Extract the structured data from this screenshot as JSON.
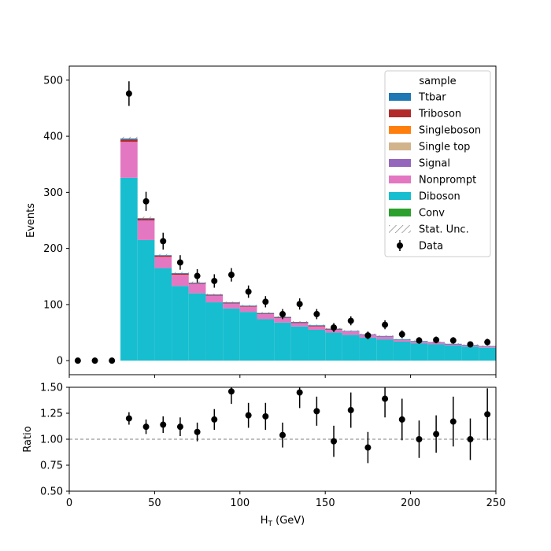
{
  "chart_data": [
    {
      "type": "bar",
      "subtype": "stacked-histogram",
      "panel": "main",
      "ylabel": "Events",
      "xlim": [
        0,
        250
      ],
      "ylim": [
        -25,
        525
      ],
      "yticks": [
        0,
        100,
        200,
        300,
        400,
        500
      ],
      "bin_edges": [
        30,
        40,
        50,
        60,
        70,
        80,
        90,
        100,
        110,
        120,
        130,
        140,
        150,
        160,
        170,
        180,
        190,
        200,
        210,
        220,
        230,
        240,
        250
      ],
      "series": [
        {
          "name": "Diboson",
          "color": "#17becf",
          "values": [
            326,
            215,
            165,
            133,
            120,
            104,
            93,
            87,
            74,
            68,
            61,
            55,
            50,
            46,
            41,
            38,
            34,
            31,
            29,
            27,
            25,
            23
          ]
        },
        {
          "name": "Nonprompt",
          "color": "#e377c2",
          "values": [
            64,
            35,
            20,
            20,
            17,
            12,
            9,
            9,
            9,
            8,
            6,
            6,
            5,
            6,
            5,
            5,
            3,
            3,
            3,
            2,
            2,
            2
          ]
        },
        {
          "name": "Conv",
          "color": "#2ca02c",
          "values": [
            0,
            0,
            0,
            0,
            0,
            0,
            0,
            0,
            0,
            0,
            0,
            0,
            0,
            0,
            0,
            0,
            0,
            0,
            0,
            0,
            0,
            0
          ]
        },
        {
          "name": "Signal",
          "color": "#9467bd",
          "values": [
            0,
            0,
            0,
            0,
            0,
            0,
            0,
            0,
            0,
            0,
            0,
            0,
            0,
            0,
            0,
            0,
            0,
            0,
            0,
            0,
            0,
            0
          ]
        },
        {
          "name": "Single top",
          "color": "#d2b48c",
          "values": [
            0,
            0,
            0,
            0,
            0,
            0,
            0,
            0,
            0,
            0,
            0,
            0,
            0,
            0,
            0,
            0,
            0,
            0,
            0,
            0,
            0,
            0
          ]
        },
        {
          "name": "Singleboson",
          "color": "#ff7f0e",
          "values": [
            0,
            0,
            0,
            0,
            0,
            0,
            0,
            0,
            0,
            0,
            0,
            0,
            0,
            0,
            0,
            0,
            0,
            0,
            0,
            0,
            0,
            0
          ]
        },
        {
          "name": "Triboson",
          "color": "#b22a2a",
          "values": [
            4,
            3,
            2,
            2,
            1,
            1,
            1,
            1,
            1,
            1,
            1,
            1,
            1,
            0,
            0,
            0,
            0,
            0,
            0,
            0,
            0,
            0
          ]
        },
        {
          "name": "Ttbar",
          "color": "#1f77b4",
          "values": [
            2,
            1,
            1,
            1,
            1,
            1,
            1,
            1,
            1,
            1,
            1,
            1,
            1,
            1,
            1,
            1,
            1,
            1,
            1,
            1,
            1,
            1
          ]
        }
      ],
      "stat_unc": [
        3,
        2.5,
        2,
        2,
        2,
        1.5,
        1.5,
        1.5,
        1.5,
        1.5,
        1.5,
        1.5,
        1.2,
        1.2,
        1.2,
        1.2,
        1,
        1,
        1,
        1,
        1,
        1
      ],
      "data": {
        "name": "Data",
        "x": [
          5,
          15,
          25,
          35,
          45,
          55,
          65,
          75,
          85,
          95,
          105,
          115,
          125,
          135,
          145,
          155,
          165,
          175,
          185,
          195,
          205,
          215,
          225,
          235,
          245
        ],
        "y": [
          0,
          0,
          0,
          476,
          284,
          213,
          175,
          151,
          142,
          153,
          123,
          105,
          83,
          101,
          83,
          59,
          71,
          45,
          64,
          47,
          36,
          37,
          36,
          29,
          33
        ],
        "yerr": [
          0,
          0,
          0,
          22,
          17,
          15,
          13,
          12,
          12,
          12,
          11,
          10,
          9,
          10,
          9,
          8,
          8,
          7,
          8,
          7,
          6,
          6,
          6,
          5,
          6
        ]
      },
      "legend": {
        "title": "sample",
        "placement": "upper right",
        "entries": [
          {
            "label": "Ttbar",
            "color": "#1f77b4",
            "kind": "patch"
          },
          {
            "label": "Triboson",
            "color": "#b22a2a",
            "kind": "patch"
          },
          {
            "label": "Singleboson",
            "color": "#ff7f0e",
            "kind": "patch"
          },
          {
            "label": "Single top",
            "color": "#d2b48c",
            "kind": "patch"
          },
          {
            "label": "Signal",
            "color": "#9467bd",
            "kind": "patch"
          },
          {
            "label": "Nonprompt",
            "color": "#e377c2",
            "kind": "patch"
          },
          {
            "label": "Diboson",
            "color": "#17becf",
            "kind": "patch"
          },
          {
            "label": "Conv",
            "color": "#2ca02c",
            "kind": "patch"
          },
          {
            "label": "Stat. Unc.",
            "color": "#888888",
            "kind": "hatch"
          },
          {
            "label": "Data",
            "color": "#000000",
            "kind": "errorbar"
          }
        ]
      }
    },
    {
      "type": "scatter",
      "panel": "ratio",
      "xlabel": "H$_T$ (GeV)",
      "xlabel_main": "H",
      "xlabel_sub": "T",
      "xlabel_unit": " (GeV)",
      "ylabel": "Ratio",
      "xlim": [
        0,
        250
      ],
      "ylim": [
        0.5,
        1.5
      ],
      "xticks": [
        0,
        50,
        100,
        150,
        200,
        250
      ],
      "yticks": [
        0.5,
        0.75,
        1.0,
        1.25,
        1.5
      ],
      "ytick_labels": [
        "0.50",
        "0.75",
        "1.00",
        "1.25",
        "1.50"
      ],
      "reference_line": 1.0,
      "x": [
        35,
        45,
        55,
        65,
        75,
        85,
        95,
        105,
        115,
        125,
        135,
        145,
        155,
        165,
        175,
        185,
        195,
        205,
        215,
        225,
        235,
        245
      ],
      "y": [
        1.2,
        1.12,
        1.14,
        1.12,
        1.07,
        1.19,
        1.46,
        1.23,
        1.22,
        1.04,
        1.45,
        1.27,
        0.98,
        1.28,
        0.92,
        1.39,
        1.19,
        1.0,
        1.05,
        1.17,
        1.0,
        1.24
      ],
      "yerr": [
        0.06,
        0.07,
        0.08,
        0.09,
        0.09,
        0.1,
        0.12,
        0.12,
        0.13,
        0.12,
        0.15,
        0.14,
        0.15,
        0.17,
        0.15,
        0.18,
        0.2,
        0.18,
        0.18,
        0.24,
        0.2,
        0.25
      ]
    }
  ]
}
